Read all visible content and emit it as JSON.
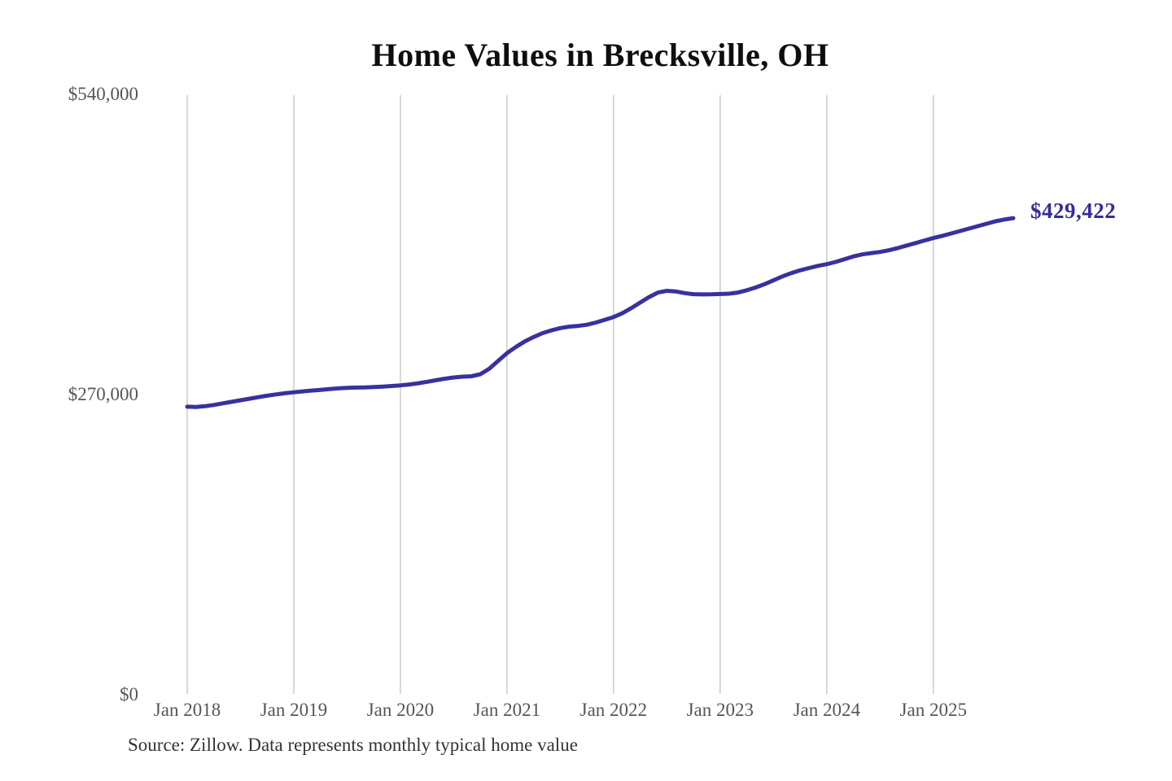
{
  "title": "Home Values in Brecksville, OH",
  "footer": {
    "source": "Source: Zillow. Data represents monthly typical home value"
  },
  "chart_data": {
    "type": "line",
    "title": "Home Values in Brecksville, OH",
    "xlabel": "",
    "ylabel": "",
    "ylim": [
      0,
      540000
    ],
    "grid": "vertical-only",
    "grid_color": "#cccccc",
    "legend_position": "none",
    "end_label": "$429,422",
    "end_label_color": "#322C9E",
    "yticks": [
      {
        "value": 540000,
        "label": "$540,000"
      },
      {
        "value": 270000,
        "label": "$270,000"
      },
      {
        "value": 0,
        "label": "$0"
      }
    ],
    "xticks": [
      {
        "label": "Jan 2018",
        "month_index": 0
      },
      {
        "label": "Jan 2019",
        "month_index": 12
      },
      {
        "label": "Jan 2020",
        "month_index": 24
      },
      {
        "label": "Jan 2021",
        "month_index": 36
      },
      {
        "label": "Jan 2022",
        "month_index": 48
      },
      {
        "label": "Jan 2023",
        "month_index": 60
      },
      {
        "label": "Jan 2024",
        "month_index": 72
      },
      {
        "label": "Jan 2025",
        "month_index": 84
      }
    ],
    "series": [
      {
        "name": "Monthly typical home value",
        "color": "#39319D",
        "x_start": "2018-01",
        "x_end": "2025-10",
        "x_freq": "monthly",
        "values": [
          259800,
          259600,
          260300,
          261400,
          262800,
          264200,
          265600,
          267000,
          268400,
          269700,
          270900,
          271900,
          272800,
          273600,
          274300,
          275000,
          275700,
          276300,
          276700,
          277000,
          277200,
          277500,
          277900,
          278400,
          279000,
          279800,
          280900,
          282200,
          283600,
          285000,
          286100,
          286800,
          287200,
          289000,
          294000,
          301000,
          308000,
          313500,
          318500,
          322500,
          326000,
          328500,
          330500,
          331800,
          332500,
          333500,
          335500,
          338000,
          340500,
          344000,
          348500,
          353500,
          358500,
          362500,
          364000,
          363500,
          362000,
          361000,
          360800,
          360900,
          361200,
          361500,
          362500,
          364500,
          367000,
          370000,
          373500,
          377000,
          380000,
          382500,
          384500,
          386500,
          388000,
          390000,
          392500,
          395000,
          396800,
          398000,
          399000,
          400500,
          402500,
          404800,
          407000,
          409300,
          411500,
          413500,
          415600,
          417800,
          420000,
          422200,
          424400,
          426600,
          428200,
          429422
        ],
        "latest_value": 429422
      }
    ]
  }
}
